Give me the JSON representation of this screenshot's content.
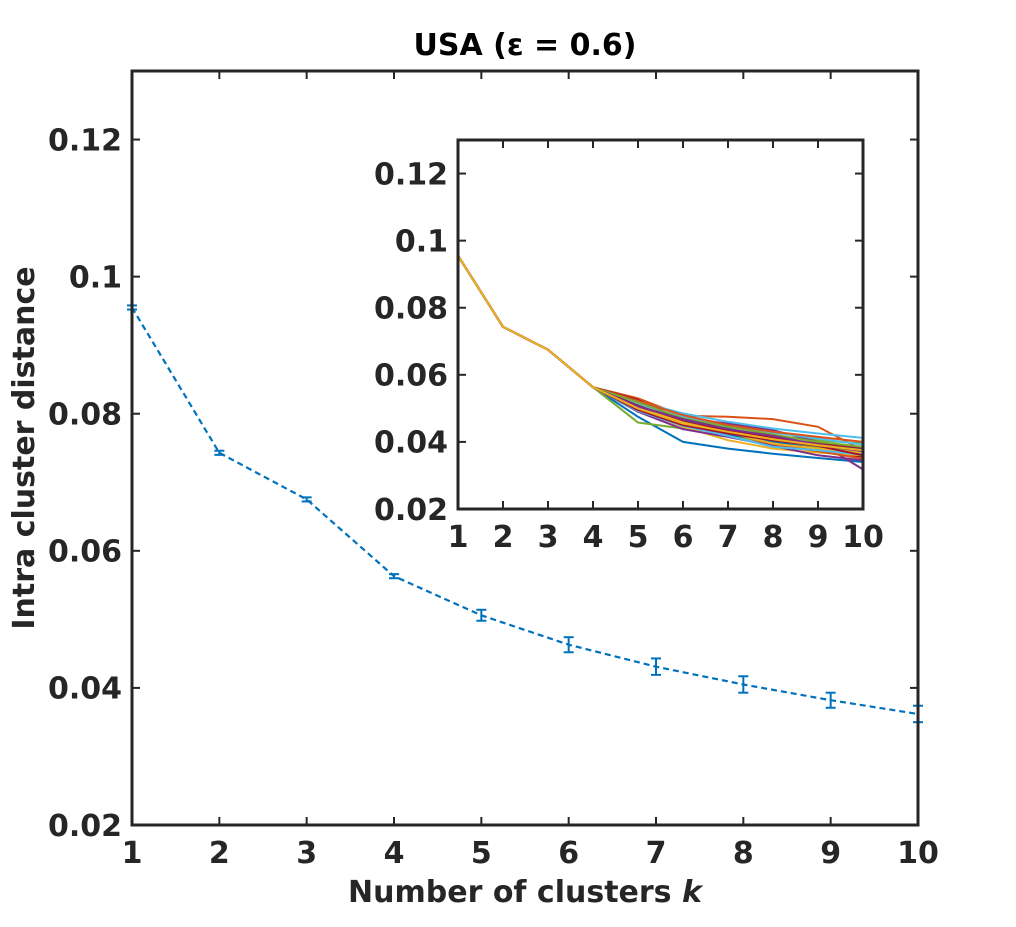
{
  "chart_data": [
    {
      "type": "line",
      "title": "USA (ε = 0.6)",
      "xlabel_text": "Number of clusters ",
      "xlabel_var": "k",
      "ylabel": "Intra cluster distance",
      "xlim": [
        1,
        10
      ],
      "ylim": [
        0.02,
        0.13
      ],
      "xticks": [
        1,
        2,
        3,
        4,
        5,
        6,
        7,
        8,
        9,
        10
      ],
      "xtick_labels": [
        "1",
        "2",
        "3",
        "4",
        "5",
        "6",
        "7",
        "8",
        "9",
        "10"
      ],
      "yticks": [
        0.02,
        0.04,
        0.06,
        0.08,
        0.1,
        0.12
      ],
      "ytick_labels": [
        "0.02",
        "0.04",
        "0.06",
        "0.08",
        "0.1",
        "0.12"
      ],
      "grid": false,
      "line_style": "dashed",
      "color": "#0072BD",
      "series": [
        {
          "x": [
            1,
            2,
            3,
            4,
            5,
            6,
            7,
            8,
            9,
            10
          ],
          "y": [
            0.0955,
            0.0743,
            0.0675,
            0.0563,
            0.0506,
            0.0463,
            0.0431,
            0.0405,
            0.0382,
            0.0362
          ],
          "err": [
            0.0003,
            0.0003,
            0.0003,
            0.0003,
            0.0008,
            0.0011,
            0.0012,
            0.0012,
            0.0011,
            0.0012
          ]
        }
      ]
    },
    {
      "type": "line",
      "role": "inset",
      "xlim": [
        1,
        10
      ],
      "ylim": [
        0.02,
        0.13
      ],
      "xticks": [
        1,
        2,
        3,
        4,
        5,
        6,
        7,
        8,
        9,
        10
      ],
      "xtick_labels": [
        "1",
        "2",
        "3",
        "4",
        "5",
        "6",
        "7",
        "8",
        "9",
        "10"
      ],
      "yticks": [
        0.02,
        0.04,
        0.06,
        0.08,
        0.1,
        0.12
      ],
      "ytick_labels": [
        "0.02",
        "0.04",
        "0.06",
        "0.08",
        "0.1",
        "0.12"
      ],
      "grid": false,
      "series": [
        {
          "color": "#0072BD",
          "x": [
            1,
            2,
            3,
            4,
            5,
            6,
            7,
            8,
            9,
            10
          ],
          "y": [
            0.0955,
            0.0743,
            0.0675,
            0.0563,
            0.0475,
            0.04,
            0.038,
            0.0365,
            0.0352,
            0.034
          ]
        },
        {
          "color": "#D95319",
          "x": [
            1,
            2,
            3,
            4,
            5,
            6,
            7,
            8,
            9,
            10
          ],
          "y": [
            0.0955,
            0.0743,
            0.0675,
            0.0563,
            0.053,
            0.0478,
            0.0475,
            0.0468,
            0.0445,
            0.0375
          ]
        },
        {
          "color": "#77AC30",
          "x": [
            1,
            2,
            3,
            4,
            5,
            6,
            7,
            8,
            9,
            10
          ],
          "y": [
            0.0955,
            0.0743,
            0.0675,
            0.0563,
            0.0458,
            0.044,
            0.043,
            0.0418,
            0.0405,
            0.0395
          ]
        },
        {
          "color": "#7E2F8E",
          "x": [
            1,
            2,
            3,
            4,
            5,
            6,
            7,
            8,
            9,
            10
          ],
          "y": [
            0.0955,
            0.0743,
            0.0675,
            0.0563,
            0.051,
            0.047,
            0.0455,
            0.0435,
            0.04,
            0.0318
          ]
        },
        {
          "color": "#4DBEEE",
          "x": [
            1,
            2,
            3,
            4,
            5,
            6,
            7,
            8,
            9,
            10
          ],
          "y": [
            0.0955,
            0.0743,
            0.0675,
            0.0563,
            0.052,
            0.0485,
            0.046,
            0.044,
            0.0425,
            0.0412
          ]
        },
        {
          "color": "#A2142F",
          "x": [
            1,
            2,
            3,
            4,
            5,
            6,
            7,
            8,
            9,
            10
          ],
          "y": [
            0.0955,
            0.0743,
            0.0675,
            0.0563,
            0.0525,
            0.0465,
            0.043,
            0.04,
            0.0375,
            0.0355
          ]
        },
        {
          "color": "#EDB120",
          "x": [
            1,
            2,
            3,
            4,
            5,
            6,
            7,
            8,
            9,
            10
          ],
          "y": [
            0.0955,
            0.0743,
            0.0675,
            0.0563,
            0.0495,
            0.0445,
            0.0405,
            0.038,
            0.0368,
            0.036
          ]
        },
        {
          "color": "#0072BD",
          "x": [
            1,
            2,
            3,
            4,
            5,
            6,
            7,
            8,
            9,
            10
          ],
          "y": [
            0.0955,
            0.0743,
            0.0675,
            0.0563,
            0.0505,
            0.046,
            0.044,
            0.041,
            0.039,
            0.0378
          ]
        },
        {
          "color": "#D95319",
          "x": [
            1,
            2,
            3,
            4,
            5,
            6,
            7,
            8,
            9,
            10
          ],
          "y": [
            0.0955,
            0.0743,
            0.0675,
            0.0563,
            0.0515,
            0.0455,
            0.0425,
            0.0392,
            0.0372,
            0.035
          ]
        },
        {
          "color": "#77AC30",
          "x": [
            1,
            2,
            3,
            4,
            5,
            6,
            7,
            8,
            9,
            10
          ],
          "y": [
            0.0955,
            0.0743,
            0.0675,
            0.0563,
            0.05,
            0.045,
            0.042,
            0.0398,
            0.0385,
            0.0372
          ]
        },
        {
          "color": "#7E2F8E",
          "x": [
            1,
            2,
            3,
            4,
            5,
            6,
            7,
            8,
            9,
            10
          ],
          "y": [
            0.0955,
            0.0743,
            0.0675,
            0.0563,
            0.049,
            0.0438,
            0.0415,
            0.0388,
            0.036,
            0.0345
          ]
        },
        {
          "color": "#4DBEEE",
          "x": [
            1,
            2,
            3,
            4,
            5,
            6,
            7,
            8,
            9,
            10
          ],
          "y": [
            0.0955,
            0.0743,
            0.0675,
            0.0563,
            0.0512,
            0.0475,
            0.0448,
            0.0428,
            0.041,
            0.0392
          ]
        },
        {
          "color": "#A2142F",
          "x": [
            1,
            2,
            3,
            4,
            5,
            6,
            7,
            8,
            9,
            10
          ],
          "y": [
            0.0955,
            0.0743,
            0.0675,
            0.0563,
            0.0508,
            0.046,
            0.0435,
            0.0412,
            0.0395,
            0.0382
          ]
        },
        {
          "color": "#0072BD",
          "x": [
            1,
            2,
            3,
            4,
            5,
            6,
            7,
            8,
            9,
            10
          ],
          "y": [
            0.0955,
            0.0743,
            0.0675,
            0.0563,
            0.0498,
            0.0452,
            0.0422,
            0.0402,
            0.0378,
            0.0365
          ]
        },
        {
          "color": "#D95319",
          "x": [
            1,
            2,
            3,
            4,
            5,
            6,
            7,
            8,
            9,
            10
          ],
          "y": [
            0.0955,
            0.0743,
            0.0675,
            0.0563,
            0.0522,
            0.048,
            0.045,
            0.043,
            0.0415,
            0.04
          ]
        },
        {
          "color": "#EDB120",
          "x": [
            1,
            2,
            3,
            4,
            5,
            6,
            7,
            8,
            9,
            10
          ],
          "y": [
            0.0955,
            0.0743,
            0.0675,
            0.0563,
            0.0502,
            0.0458,
            0.0428,
            0.0395,
            0.038,
            0.0368
          ]
        },
        {
          "color": "#77AC30",
          "x": [
            1,
            2,
            3,
            4,
            5,
            6,
            7,
            8,
            9,
            10
          ],
          "y": [
            0.0955,
            0.0743,
            0.0675,
            0.0563,
            0.0518,
            0.047,
            0.0445,
            0.0422,
            0.04,
            0.0385
          ]
        },
        {
          "color": "#4DBEEE",
          "x": [
            1,
            2,
            3,
            4,
            5,
            6,
            7,
            8,
            9,
            10
          ],
          "y": [
            0.0955,
            0.0743,
            0.0675,
            0.0563,
            0.0492,
            0.0448,
            0.0418,
            0.0385,
            0.0375,
            0.0362
          ]
        },
        {
          "color": "#7E2F8E",
          "x": [
            1,
            2,
            3,
            4,
            5,
            6,
            7,
            8,
            9,
            10
          ],
          "y": [
            0.0955,
            0.0743,
            0.0675,
            0.0563,
            0.0505,
            0.0468,
            0.0438,
            0.0418,
            0.0392,
            0.0372
          ]
        },
        {
          "color": "#A2142F",
          "x": [
            1,
            2,
            3,
            4,
            5,
            6,
            7,
            8,
            9,
            10
          ],
          "y": [
            0.0955,
            0.0743,
            0.0675,
            0.0563,
            0.0495,
            0.045,
            0.0425,
            0.0405,
            0.0388,
            0.036
          ]
        },
        {
          "color": "#EDB120",
          "x": [
            1,
            2,
            3,
            4,
            5,
            6,
            7,
            8,
            9,
            10
          ],
          "y": [
            0.0955,
            0.0743,
            0.0675,
            0.0563,
            0.05,
            0.0455,
            0.043,
            0.0408,
            0.039,
            0.0375
          ]
        }
      ]
    }
  ]
}
